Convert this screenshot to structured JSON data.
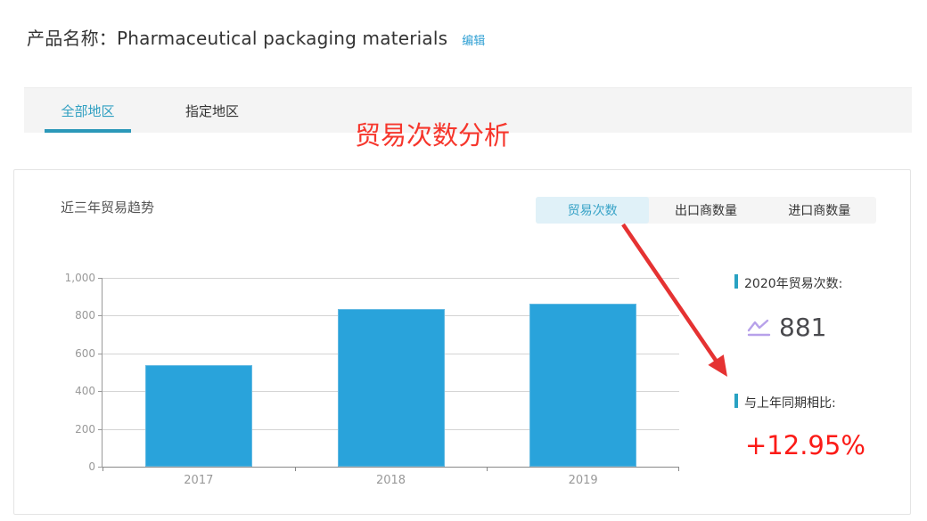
{
  "header": {
    "label": "产品名称：",
    "product_name": "Pharmaceutical packaging materials",
    "edit_link": "编辑"
  },
  "region_tabs": {
    "items": [
      {
        "label": "全部地区",
        "active": true
      },
      {
        "label": "指定地区",
        "active": false
      }
    ]
  },
  "annotation": {
    "text": "贸易次数分析"
  },
  "card": {
    "title": "近三年贸易趋势",
    "metric_tabs": [
      {
        "label": "贸易次数",
        "active": true
      },
      {
        "label": "出口商数量",
        "active": false
      },
      {
        "label": "进口商数量",
        "active": false
      }
    ],
    "stats": [
      {
        "label": "2020年贸易次数:",
        "value": "881",
        "icon": "line-chart-icon"
      },
      {
        "label": "与上年同期相比:",
        "value": "+12.95%",
        "value_color": "#fb1b17"
      }
    ]
  },
  "chart_data": {
    "type": "bar",
    "title": "近三年贸易趋势",
    "categories": [
      "2017",
      "2018",
      "2019"
    ],
    "values": [
      540,
      835,
      865
    ],
    "xlabel": "",
    "ylabel": "",
    "ylim": [
      0,
      1000
    ],
    "yticks": [
      0,
      200,
      400,
      600,
      800,
      1000
    ],
    "ytick_labels": [
      "0",
      "200",
      "400",
      "600",
      "800",
      "1,000"
    ],
    "bar_color": "#29a3db",
    "grid": true,
    "legend": "none"
  },
  "colors": {
    "accent_teal": "#2b98b9",
    "bar_blue": "#29a3db",
    "annotation_red": "#f6362c",
    "percent_red": "#fb1b17",
    "arrow_red": "#e53232",
    "icon_purple": "#b7a1ea"
  }
}
